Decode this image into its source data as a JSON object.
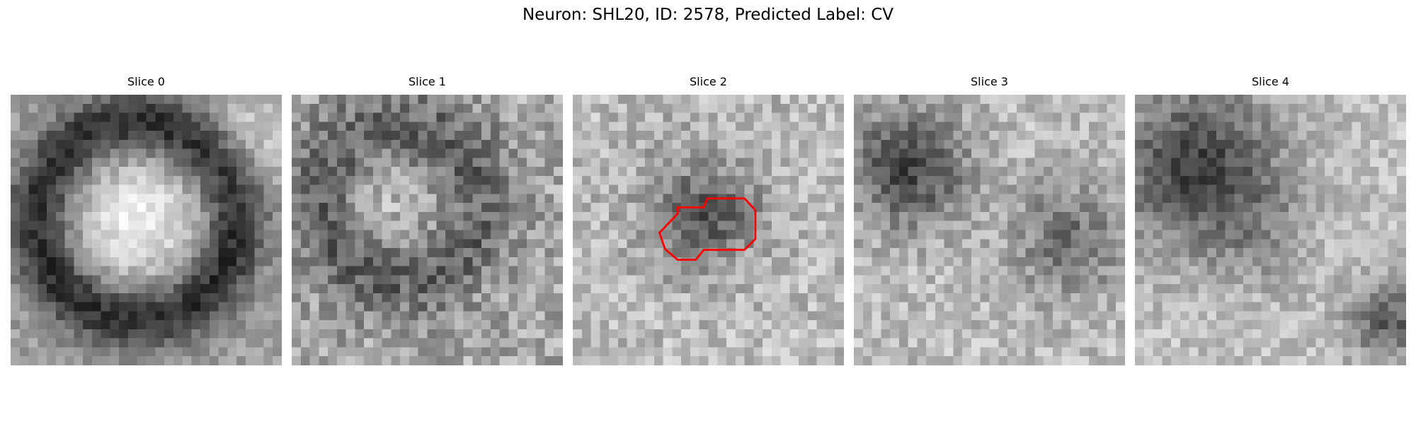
{
  "figure": {
    "title": "Neuron: SHL20, ID: 2578, Predicted Label: CV"
  },
  "panels": [
    {
      "title": "Slice 0",
      "has_roi_outline": false
    },
    {
      "title": "Slice 1",
      "has_roi_outline": false
    },
    {
      "title": "Slice 2",
      "has_roi_outline": true
    },
    {
      "title": "Slice 3",
      "has_roi_outline": false
    },
    {
      "title": "Slice 4",
      "has_roi_outline": false
    }
  ],
  "colors": {
    "colormap": "grayscale",
    "roi_outline": "#ff0000",
    "background": "#ffffff"
  }
}
